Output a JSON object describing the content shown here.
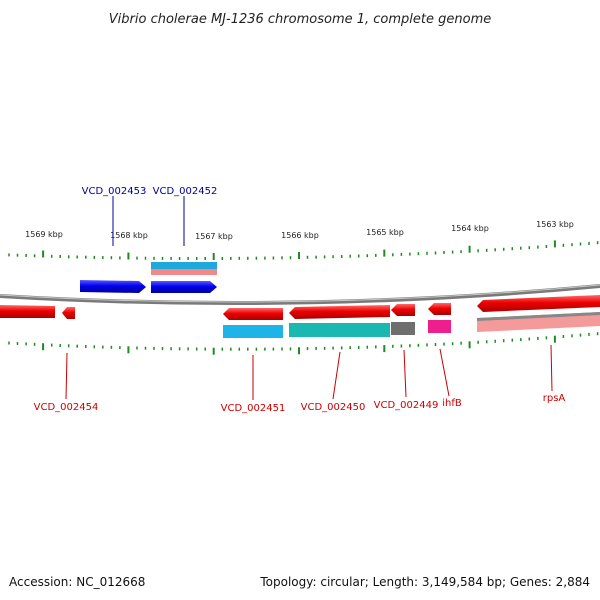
{
  "title": "Vibrio cholerae MJ-1236 chromosome 1, complete genome",
  "footer": {
    "accession": "Accession: NC_012668",
    "summary": "Topology: circular; Length: 3,149,584 bp; Genes: 2,884"
  },
  "scale": {
    "labels": [
      "1569 kbp",
      "1568 kbp",
      "1567 kbp",
      "1566 kbp",
      "1565 kbp",
      "1564 kbp",
      "1563 kbp"
    ]
  },
  "colors": {
    "backbone": "#7a7a7a",
    "tick": "#1f8a1f",
    "forward_gene": "#0000ee",
    "reverse_gene": "#ee0000",
    "label_forward": "#000099",
    "label_reverse": "#cc0000"
  },
  "genes": {
    "upper": [
      {
        "id": "VCD_002453",
        "label": "VCD_002453"
      },
      {
        "id": "VCD_002452",
        "label": "VCD_002452"
      }
    ],
    "lower": [
      {
        "id": "VCD_002454",
        "label": "VCD_002454"
      },
      {
        "id": "VCD_002451",
        "label": "VCD_002451"
      },
      {
        "id": "VCD_002450",
        "label": "VCD_002450"
      },
      {
        "id": "VCD_002449",
        "label": "VCD_002449"
      },
      {
        "id": "ihfB",
        "label": "ihfB"
      },
      {
        "id": "rpsA",
        "label": "rpsA"
      }
    ]
  }
}
